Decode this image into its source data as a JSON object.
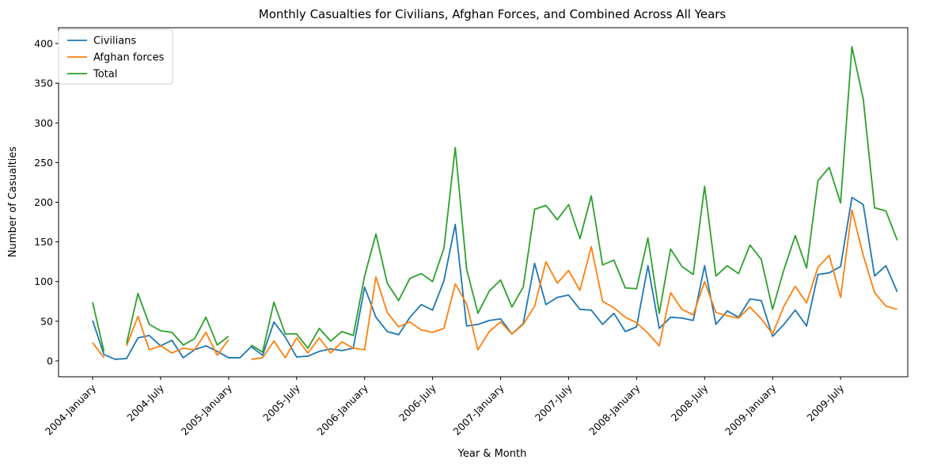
{
  "chart_data": {
    "type": "line",
    "title": "Monthly Casualties for Civilians, Afghan Forces, and Combined Across All Years",
    "xlabel": "Year & Month",
    "ylabel": "Number of Casualties",
    "ylim": [
      -20,
      420
    ],
    "yticks": [
      0,
      50,
      100,
      150,
      200,
      250,
      300,
      350,
      400
    ],
    "xtick_labels": [
      "2004-January",
      "2004-July",
      "2005-January",
      "2005-July",
      "2006-January",
      "2006-July",
      "2007-January",
      "2007-July",
      "2008-January",
      "2008-July",
      "2009-January",
      "2009-July"
    ],
    "legend_position": "upper-left",
    "grid": false,
    "series": [
      {
        "name": "Civilians",
        "color": "#1f77b4",
        "values": [
          51,
          8,
          2,
          3,
          29,
          32,
          19,
          26,
          4,
          14,
          19,
          12,
          4,
          4,
          18,
          7,
          49,
          30,
          5,
          6,
          12,
          15,
          13,
          16,
          93,
          55,
          37,
          33,
          55,
          71,
          64,
          101,
          172,
          44,
          46,
          51,
          53,
          34,
          47,
          123,
          71,
          80,
          83,
          65,
          64,
          46,
          60,
          37,
          43,
          120,
          41,
          55,
          54,
          51,
          120,
          46,
          63,
          55,
          78,
          76,
          31,
          46,
          64,
          44,
          109,
          111,
          119,
          206,
          197,
          107,
          120,
          87
        ]
      },
      {
        "name": "Afghan forces",
        "color": "#ff7f0e",
        "values": [
          23,
          4,
          null,
          19,
          56,
          14,
          19,
          10,
          16,
          14,
          36,
          7,
          27,
          null,
          2,
          4,
          25,
          4,
          29,
          10,
          29,
          10,
          24,
          16,
          14,
          106,
          61,
          43,
          49,
          39,
          36,
          41,
          97,
          72,
          14,
          37,
          49,
          34,
          46,
          69,
          125,
          98,
          114,
          89,
          144,
          75,
          67,
          55,
          48,
          35,
          19,
          86,
          65,
          58,
          100,
          61,
          57,
          54,
          68,
          53,
          34,
          69,
          94,
          73,
          118,
          133,
          80,
          190,
          133,
          86,
          69,
          65
        ]
      },
      {
        "name": "Total",
        "color": "#2ca02c",
        "values": [
          74,
          12,
          null,
          22,
          85,
          46,
          38,
          36,
          20,
          28,
          55,
          20,
          31,
          null,
          20,
          11,
          74,
          34,
          34,
          16,
          41,
          25,
          37,
          32,
          107,
          160,
          98,
          76,
          104,
          110,
          100,
          142,
          269,
          116,
          60,
          88,
          102,
          68,
          93,
          191,
          196,
          178,
          197,
          154,
          208,
          121,
          127,
          92,
          91,
          155,
          60,
          141,
          119,
          109,
          220,
          107,
          120,
          110,
          146,
          128,
          65,
          115,
          158,
          117,
          227,
          244,
          199,
          396,
          330,
          193,
          189,
          152
        ]
      }
    ]
  }
}
